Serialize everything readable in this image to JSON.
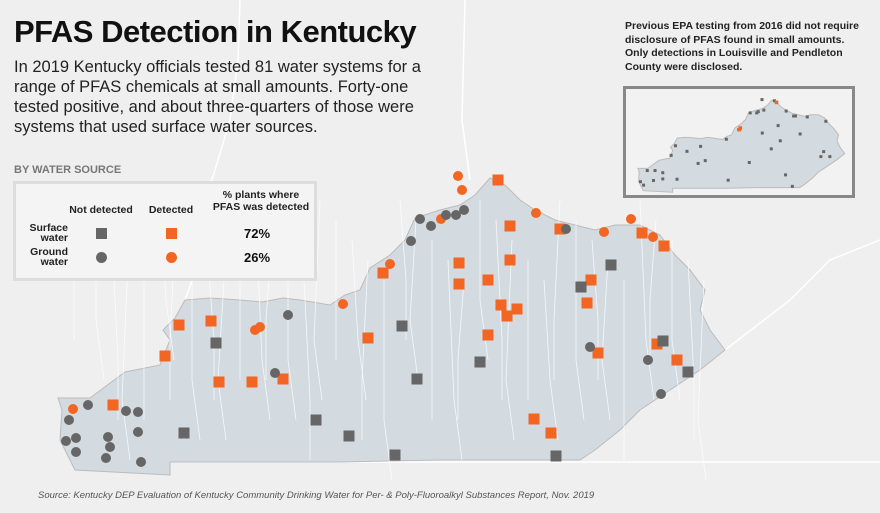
{
  "title": "PFAS Detection in Kentucky",
  "intro": "In 2019 Kentucky officials tested 81 water systems for a range of PFAS chemicals at small amounts. Forty-one tested positive, and about three-quarters of those were systems that used surface water sources.",
  "legend": {
    "heading": "BY WATER SOURCE",
    "col_not_detected": "Not detected",
    "col_detected": "Detected",
    "col_pct": "% plants where PFAS was detected",
    "rows": [
      {
        "label": "Surface water",
        "marker": "square",
        "pct": "72%"
      },
      {
        "label": "Ground water",
        "marker": "circle",
        "pct": "26%"
      }
    ]
  },
  "colors": {
    "detected": "#f26522",
    "not_detected": "#666666",
    "state_fill": "#d3dbe1",
    "county_line": "#ffffff"
  },
  "inset": {
    "note": "Previous EPA testing from 2016 did not require disclosure of PFAS found in small amounts. Only detections in Louisville and Pendleton County were disclosed."
  },
  "source": "Source: Kentucky DEP Evaluation of Kentucky Community Drinking Water for Per- & Poly-Fluoroalkyl Substances Report, Nov. 2019"
}
